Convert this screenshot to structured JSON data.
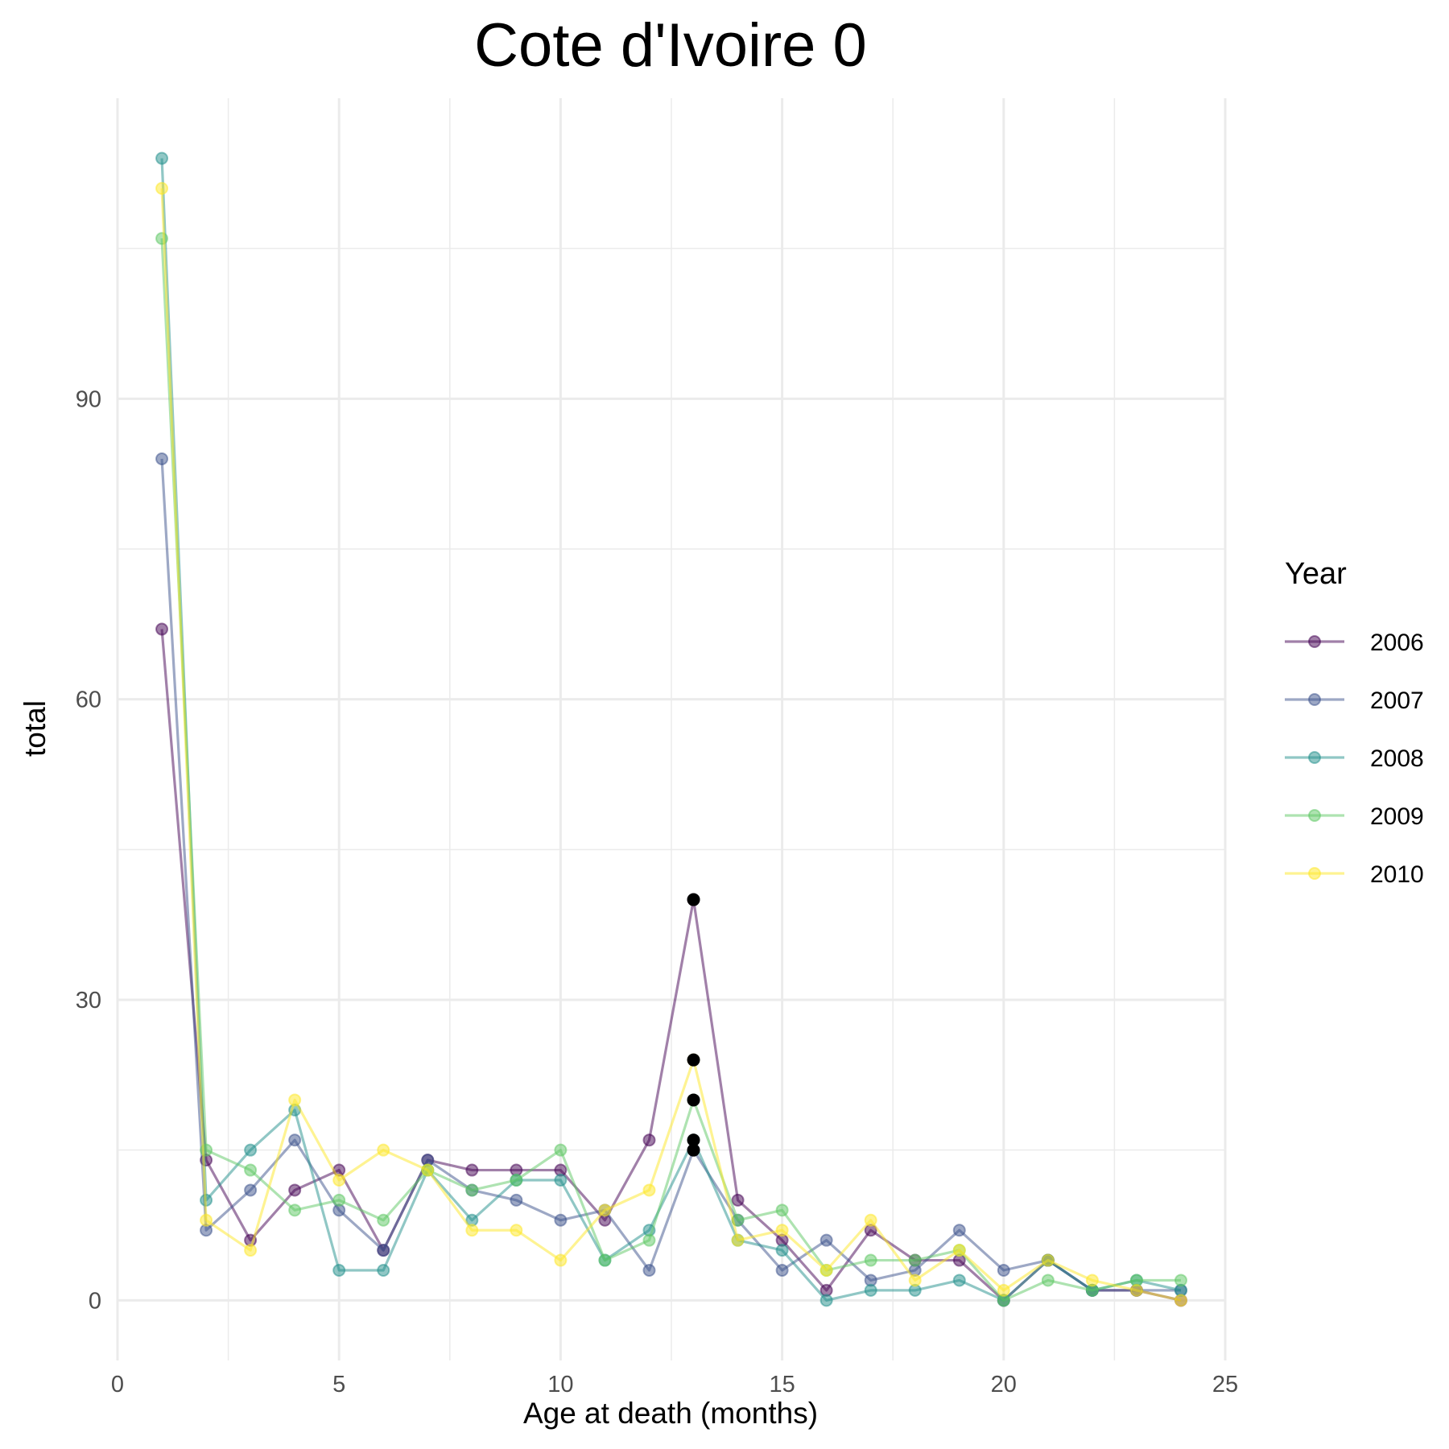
{
  "chart_data": {
    "type": "line",
    "title": "Cote d'Ivoire 0",
    "xlabel": "Age at death (months)",
    "ylabel": "total",
    "xlim": [
      0,
      25
    ],
    "ylim": [
      -6,
      120
    ],
    "x_ticks": [
      0,
      5,
      10,
      15,
      20,
      25
    ],
    "y_ticks": [
      0,
      30,
      60,
      90
    ],
    "grid": true,
    "legend": {
      "title": "Year",
      "position": "right"
    },
    "x": [
      1,
      2,
      3,
      4,
      5,
      6,
      7,
      8,
      9,
      10,
      11,
      12,
      13,
      14,
      15,
      16,
      17,
      18,
      19,
      20,
      21,
      22,
      23,
      24
    ],
    "series": [
      {
        "name": "2006",
        "color": "#440154",
        "values": [
          67,
          14,
          6,
          11,
          13,
          5,
          14,
          13,
          13,
          13,
          8,
          16,
          40,
          10,
          6,
          1,
          7,
          4,
          4,
          0,
          4,
          1,
          1,
          0
        ]
      },
      {
        "name": "2007",
        "color": "#3B528B",
        "values": [
          84,
          7,
          11,
          16,
          9,
          5,
          14,
          11,
          10,
          8,
          9,
          3,
          15,
          8,
          3,
          6,
          2,
          3,
          7,
          3,
          4,
          1,
          1,
          1
        ]
      },
      {
        "name": "2008",
        "color": "#21908C",
        "values": [
          114,
          10,
          15,
          19,
          3,
          3,
          13,
          8,
          12,
          12,
          4,
          7,
          16,
          6,
          5,
          0,
          1,
          1,
          2,
          0,
          4,
          1,
          2,
          1
        ]
      },
      {
        "name": "2009",
        "color": "#5DC863",
        "values": [
          106,
          15,
          13,
          9,
          10,
          8,
          13,
          11,
          12,
          15,
          4,
          6,
          20,
          8,
          9,
          3,
          4,
          4,
          5,
          0,
          2,
          1,
          2,
          2
        ]
      },
      {
        "name": "2010",
        "color": "#FDE725",
        "values": [
          111,
          8,
          5,
          20,
          12,
          15,
          13,
          7,
          7,
          4,
          9,
          11,
          24,
          6,
          7,
          3,
          8,
          2,
          5,
          1,
          4,
          2,
          1,
          0
        ]
      }
    ],
    "highlight_points": {
      "x": 13,
      "values": [
        40,
        15,
        16,
        20,
        24
      ],
      "color": "#000000"
    }
  }
}
